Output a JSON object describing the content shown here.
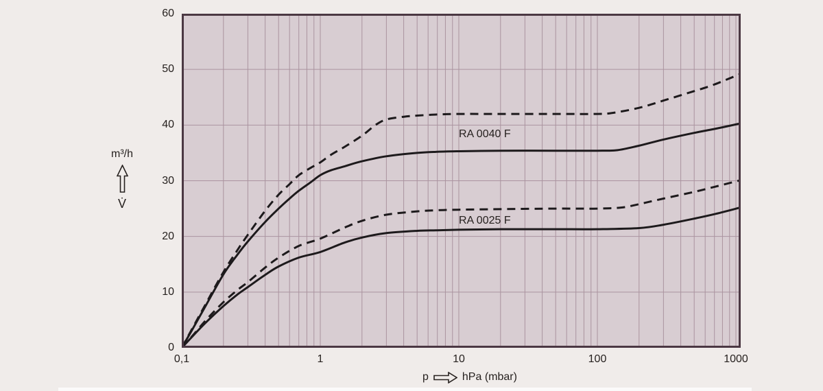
{
  "page": {
    "background": "#f0ecea"
  },
  "chart_data": {
    "type": "line",
    "title": "",
    "x_axis": {
      "label_prefix": "p",
      "label_unit": "hPa (mbar)",
      "scale": "log",
      "min": 0.1,
      "max": 1080,
      "ticks": [
        {
          "v": 0.1,
          "label": "0,1"
        },
        {
          "v": 1,
          "label": "1"
        },
        {
          "v": 10,
          "label": "10"
        },
        {
          "v": 100,
          "label": "100"
        },
        {
          "v": 1000,
          "label": "1000"
        }
      ]
    },
    "y_axis": {
      "unit": "m³/h",
      "symbol": "V̇",
      "min": 0,
      "max": 60,
      "ticks": [
        {
          "v": 0,
          "label": "0"
        },
        {
          "v": 10,
          "label": "10"
        },
        {
          "v": 20,
          "label": "20"
        },
        {
          "v": 30,
          "label": "30"
        },
        {
          "v": 40,
          "label": "40"
        },
        {
          "v": 50,
          "label": "50"
        },
        {
          "v": 60,
          "label": "60"
        }
      ],
      "gridlines": [
        10,
        20,
        30,
        40,
        50
      ]
    },
    "grid": "on",
    "legend": "inline-labels",
    "series": [
      {
        "id": "ra-0040-f-dashed",
        "pump": "RA 0040 F",
        "style": "dashed",
        "points": [
          [
            0.1,
            0
          ],
          [
            0.12,
            3.6
          ],
          [
            0.15,
            8.0
          ],
          [
            0.2,
            13.6
          ],
          [
            0.25,
            17.4
          ],
          [
            0.3,
            20.3
          ],
          [
            0.4,
            24.6
          ],
          [
            0.5,
            27.5
          ],
          [
            0.6,
            29.4
          ],
          [
            0.7,
            31.0
          ],
          [
            0.85,
            32.3
          ],
          [
            1,
            33.3
          ],
          [
            1.2,
            34.7
          ],
          [
            1.5,
            36.1
          ],
          [
            2,
            38.1
          ],
          [
            2.5,
            40.0
          ],
          [
            3,
            41.0
          ],
          [
            4,
            41.5
          ],
          [
            5,
            41.7
          ],
          [
            7,
            41.9
          ],
          [
            10,
            42.0
          ],
          [
            20,
            42.0
          ],
          [
            50,
            42.0
          ],
          [
            100,
            42.0
          ],
          [
            130,
            42.2
          ],
          [
            200,
            43.1
          ],
          [
            300,
            44.4
          ],
          [
            500,
            46.1
          ],
          [
            700,
            47.3
          ],
          [
            1080,
            49.2
          ]
        ]
      },
      {
        "id": "ra-0040-f-solid",
        "pump": "RA 0040 F",
        "style": "solid",
        "points": [
          [
            0.1,
            0
          ],
          [
            0.12,
            3.4
          ],
          [
            0.15,
            7.7
          ],
          [
            0.2,
            13.2
          ],
          [
            0.25,
            16.6
          ],
          [
            0.3,
            19.1
          ],
          [
            0.4,
            22.6
          ],
          [
            0.5,
            25.0
          ],
          [
            0.6,
            26.8
          ],
          [
            0.7,
            28.2
          ],
          [
            0.85,
            29.7
          ],
          [
            1,
            31.0
          ],
          [
            1.2,
            31.9
          ],
          [
            1.5,
            32.6
          ],
          [
            2,
            33.5
          ],
          [
            3,
            34.4
          ],
          [
            5,
            35.0
          ],
          [
            7,
            35.2
          ],
          [
            10,
            35.3
          ],
          [
            20,
            35.4
          ],
          [
            50,
            35.4
          ],
          [
            100,
            35.4
          ],
          [
            140,
            35.5
          ],
          [
            200,
            36.3
          ],
          [
            300,
            37.4
          ],
          [
            500,
            38.6
          ],
          [
            700,
            39.3
          ],
          [
            1080,
            40.3
          ]
        ]
      },
      {
        "id": "ra-0025-f-dashed",
        "pump": "RA 0025 F",
        "style": "dashed",
        "points": [
          [
            0.1,
            0
          ],
          [
            0.12,
            2.2
          ],
          [
            0.15,
            5.0
          ],
          [
            0.2,
            8.2
          ],
          [
            0.25,
            10.3
          ],
          [
            0.3,
            11.8
          ],
          [
            0.4,
            14.4
          ],
          [
            0.5,
            16.2
          ],
          [
            0.7,
            18.3
          ],
          [
            1,
            19.6
          ],
          [
            1.5,
            21.6
          ],
          [
            2,
            22.8
          ],
          [
            3,
            23.9
          ],
          [
            5,
            24.5
          ],
          [
            7,
            24.7
          ],
          [
            10,
            24.8
          ],
          [
            20,
            24.9
          ],
          [
            50,
            25.0
          ],
          [
            100,
            25.0
          ],
          [
            150,
            25.2
          ],
          [
            200,
            25.8
          ],
          [
            300,
            26.8
          ],
          [
            500,
            28.0
          ],
          [
            700,
            28.9
          ],
          [
            1080,
            30.1
          ]
        ]
      },
      {
        "id": "ra-0025-f-solid",
        "pump": "RA 0025 F",
        "style": "solid",
        "points": [
          [
            0.1,
            0
          ],
          [
            0.12,
            2.1
          ],
          [
            0.15,
            4.6
          ],
          [
            0.2,
            7.5
          ],
          [
            0.25,
            9.5
          ],
          [
            0.3,
            10.9
          ],
          [
            0.4,
            13.1
          ],
          [
            0.5,
            14.6
          ],
          [
            0.7,
            16.2
          ],
          [
            1,
            17.2
          ],
          [
            1.5,
            18.9
          ],
          [
            2,
            19.8
          ],
          [
            3,
            20.6
          ],
          [
            5,
            21.0
          ],
          [
            7,
            21.1
          ],
          [
            10,
            21.2
          ],
          [
            20,
            21.3
          ],
          [
            50,
            21.3
          ],
          [
            100,
            21.3
          ],
          [
            200,
            21.5
          ],
          [
            300,
            22.1
          ],
          [
            500,
            23.2
          ],
          [
            700,
            24.0
          ],
          [
            1080,
            25.2
          ]
        ]
      }
    ],
    "annotations": [
      {
        "text": "RA 0040 F",
        "x": 10,
        "y": 38.3
      },
      {
        "text": "RA 0025 F",
        "x": 10,
        "y": 22.8
      }
    ],
    "colors": {
      "curve": "#1d1a1c",
      "grid": "#aa939f",
      "plot_bg": "#d8cdd2",
      "border": "#4b3843",
      "text": "#26211f",
      "page_bg": "#f0ecea"
    }
  }
}
